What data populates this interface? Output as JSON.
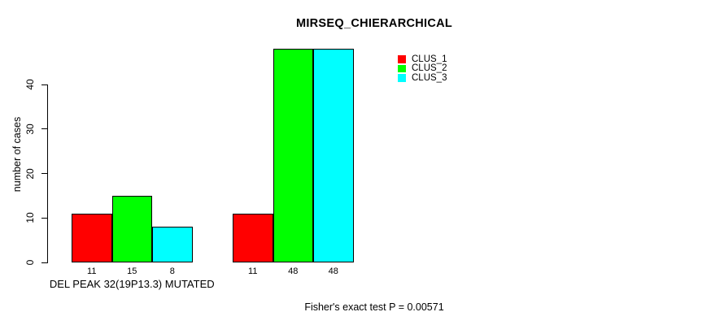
{
  "chart_data": {
    "type": "bar",
    "title": "MIRSEQ_CHIERARCHICAL",
    "ylabel": "number of cases",
    "xlabel": "",
    "ylim": [
      0,
      40
    ],
    "yticks": [
      0,
      10,
      20,
      30,
      40
    ],
    "grid": false,
    "legend_position": "top-right",
    "bar_border_color": "#000000",
    "series": [
      {
        "name": "CLUS_1",
        "color": "#FF0000"
      },
      {
        "name": "CLUS_2",
        "color": "#00FF00"
      },
      {
        "name": "CLUS_3",
        "color": "#00FFFF"
      }
    ],
    "groups": [
      {
        "label": "DEL PEAK 32(19P13.3) MUTATED",
        "values": [
          11,
          15,
          8
        ],
        "bar_labels": [
          "11",
          "15",
          "8"
        ]
      },
      {
        "label": "",
        "values": [
          11,
          48,
          48
        ],
        "bar_labels": [
          "11",
          "48",
          "48"
        ]
      }
    ],
    "annotation": "Fisher's exact test P = 0.00571"
  }
}
